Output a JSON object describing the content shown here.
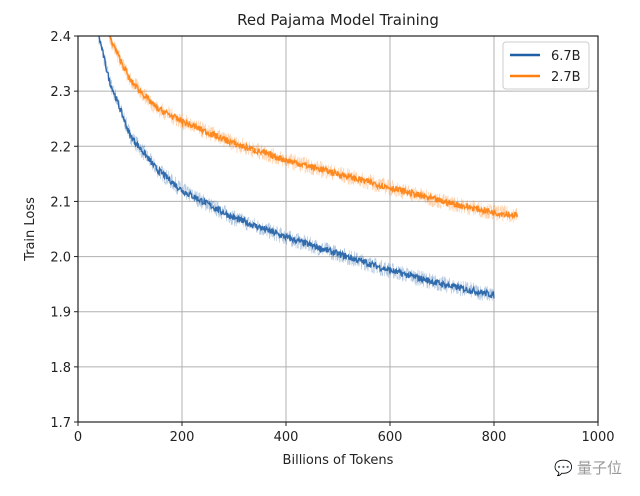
{
  "chart_data": {
    "type": "line",
    "title": "Red Pajama Model Training",
    "xlabel": "Billions of Tokens",
    "ylabel": "Train Loss",
    "xlim": [
      0,
      1000
    ],
    "ylim": [
      1.7,
      2.4
    ],
    "xticks": [
      "0",
      "200",
      "400",
      "600",
      "800",
      "1000"
    ],
    "yticks": [
      "1.7",
      "1.8",
      "1.9",
      "2.0",
      "2.1",
      "2.2",
      "2.3",
      "2.4"
    ],
    "grid": true,
    "legend_position": "top-right",
    "series": [
      {
        "name": "6.7B",
        "color": "#1f5fa6",
        "x": [
          40,
          60,
          100,
          150,
          200,
          300,
          400,
          500,
          600,
          700,
          800
        ],
        "y": [
          2.4,
          2.32,
          2.22,
          2.16,
          2.12,
          2.07,
          2.035,
          2.005,
          1.975,
          1.95,
          1.93
        ]
      },
      {
        "name": "2.7B",
        "color": "#ff7f0e",
        "x": [
          60,
          100,
          150,
          200,
          300,
          400,
          500,
          600,
          700,
          800,
          845
        ],
        "y": [
          2.4,
          2.32,
          2.27,
          2.245,
          2.205,
          2.175,
          2.15,
          2.125,
          2.1,
          2.08,
          2.075
        ]
      }
    ]
  },
  "watermark": "量子位"
}
